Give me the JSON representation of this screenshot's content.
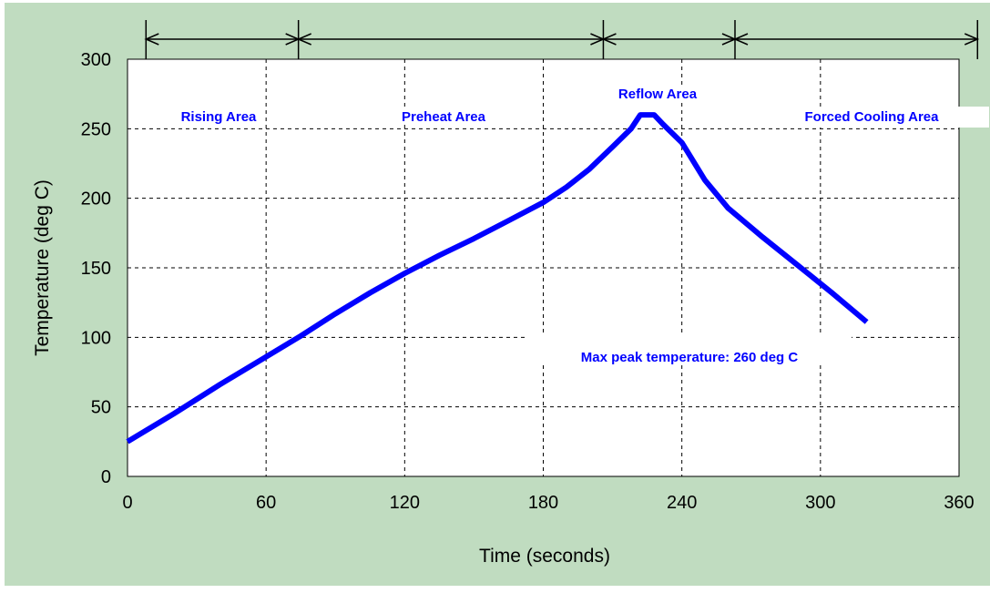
{
  "colors": {
    "background": "#c0dcc0",
    "plot_area": "#ffffff",
    "curve": "#0000ff",
    "annotation_text": "#0000ff",
    "grid": "#000000"
  },
  "chart_data": {
    "type": "line",
    "title": "",
    "xlabel": "Time (seconds)",
    "ylabel": "Temperature (deg C)",
    "xlim": [
      0,
      360
    ],
    "ylim": [
      0,
      300
    ],
    "x_ticks": [
      0,
      60,
      120,
      180,
      240,
      300,
      360
    ],
    "y_ticks": [
      0,
      50,
      100,
      150,
      200,
      250,
      300
    ],
    "grid": true,
    "grid_style": "dashed",
    "series": [
      {
        "name": "",
        "color": "#0000ff",
        "x": [
          0,
          20,
          40,
          60,
          75,
          90,
          105,
          120,
          135,
          150,
          165,
          180,
          190,
          200,
          210,
          218,
          222,
          225,
          228,
          232,
          240,
          250,
          260,
          275,
          290,
          305,
          320
        ],
        "y": [
          25,
          45,
          66,
          86,
          101,
          117,
          132,
          146,
          159,
          171,
          184,
          197,
          208,
          221,
          237,
          250,
          260,
          260,
          260,
          253,
          240,
          213,
          193,
          172,
          152,
          132,
          111
        ]
      }
    ],
    "zones": [
      {
        "label": "Rising Area",
        "start": 8,
        "end": 74
      },
      {
        "label": "Preheat Area",
        "start": 74,
        "end": 206
      },
      {
        "label": "Reflow Area",
        "start": 206,
        "end": 263
      },
      {
        "label": "Forced Cooling Area",
        "start": 263,
        "end": 368
      }
    ],
    "annotations": [
      {
        "text": "Max peak temperature: 260 deg C"
      }
    ]
  }
}
